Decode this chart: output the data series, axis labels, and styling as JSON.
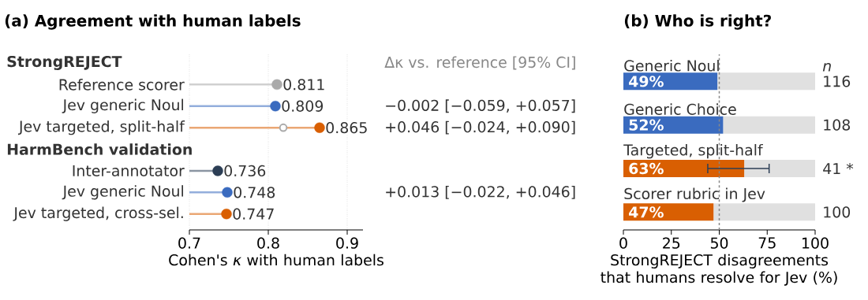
{
  "chart_data": [
    {
      "type": "lollipop",
      "title": "(a) Agreement with human labels",
      "xlabel": "Cohen's *κ* with human labels",
      "orientation": "horizontal",
      "categories": [
        null,
        "Reference scorer",
        "Jev generic Noul",
        "Jev targeted, split-half",
        null,
        "Inter-annotator",
        "Jev generic Noul",
        "Jev targeted, cross-sel."
      ],
      "series": [
        {
          "colors": [
            null,
            "#aaaaaa",
            "#3a6bbf",
            "#d95f02",
            null,
            "#2c3e55",
            "#3a6bbf",
            "#d95f02"
          ],
          "values": [
            null,
            0.811,
            0.809,
            0.865,
            null,
            0.736,
            0.748,
            0.747
          ],
          "value_labels": [
            null,
            "0.811",
            "0.809",
            "0.865",
            null,
            "0.736",
            "0.748",
            "0.747"
          ]
        },
        {
          "type": "scatter",
          "color": "#aaaaaa",
          "values": [
            null,
            null,
            null,
            0.819,
            null,
            null,
            null,
            null
          ]
        }
      ],
      "xlim": [
        0.7,
        0.92
      ],
      "xticks": [
        0.7,
        0.8,
        0.9
      ],
      "grid": "x",
      "marker": "circle",
      "annotations": [
        "StrongREJECT",
        "HarmBench validation",
        "Δκ vs. reference [95% CI]",
        "−0.002 [−0.059, +0.057]",
        "+0.046 [−0.024, +0.090]",
        "+0.013 [−0.022, +0.046]"
      ]
    },
    {
      "type": "bar",
      "title": "(b) Who is right?",
      "xlabel": "StrongREJECT disagreements that humans resolve for Jev (%)",
      "orientation": "horizontal",
      "stacked": true,
      "categories": [
        "Generic Noul",
        "Generic Choice",
        "Targeted, split-half",
        "Scorer rubric in Jev"
      ],
      "series": [
        {
          "colors": [
            "#3a6bbf",
            "#3a6bbf",
            "#d95f02",
            "#d95f02"
          ],
          "values": [
            49,
            52,
            63,
            47
          ],
          "value_labels": [
            "49%",
            "52%",
            "63%",
            "47%"
          ],
          "errors": [
            null,
            null,
            [
              44,
              76
            ],
            null
          ]
        },
        {
          "color": "#e0e0e0",
          "values": [
            51,
            48,
            37,
            53
          ]
        }
      ],
      "xlim": [
        0,
        100
      ],
      "xticks": [
        0,
        25,
        50,
        75,
        100
      ],
      "ref_lines": [
        {
          "axis": "x",
          "value": 50,
          "color": "#888888",
          "line_style": "dashed"
        }
      ],
      "annotations": [
        "*n*",
        "116",
        "108",
        "41 *",
        "100"
      ]
    }
  ]
}
